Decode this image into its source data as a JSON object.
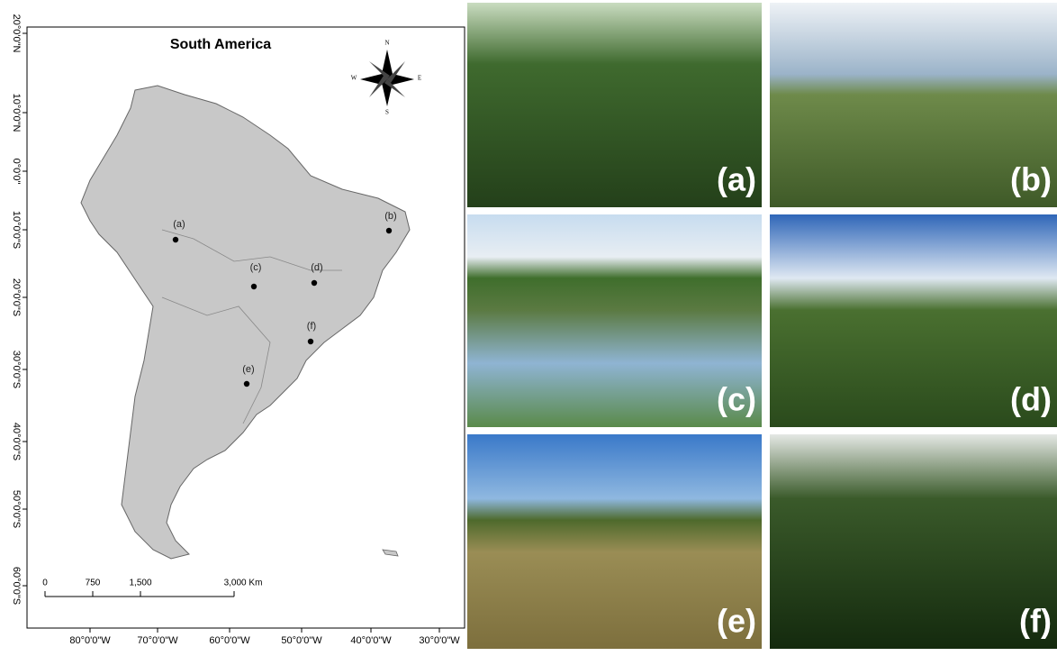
{
  "map": {
    "title": "South America",
    "latitude_labels": [
      "20°0'0\"N",
      "10°0'0\"N",
      "0°0'0\"",
      "10°0'0\"S",
      "20°0'0\"S",
      "30°0'0\"S",
      "40°0'0\"S",
      "50°0'0\"S",
      "60°0'0\"S"
    ],
    "longitude_labels": [
      "80°0'0\"W",
      "70°0'0\"W",
      "60°0'0\"W",
      "50°0'0\"W",
      "40°0'0\"W",
      "30°0'0\"W"
    ],
    "sites": [
      "(a)",
      "(b)",
      "(c)",
      "(d)",
      "(e)",
      "(f)"
    ],
    "scale_bar": [
      "0",
      "750",
      "1,500",
      "3,000 Km"
    ],
    "compass": [
      "N",
      "E",
      "S",
      "W"
    ]
  },
  "photos": [
    "(a)",
    "(b)",
    "(c)",
    "(d)",
    "(e)",
    "(f)"
  ]
}
